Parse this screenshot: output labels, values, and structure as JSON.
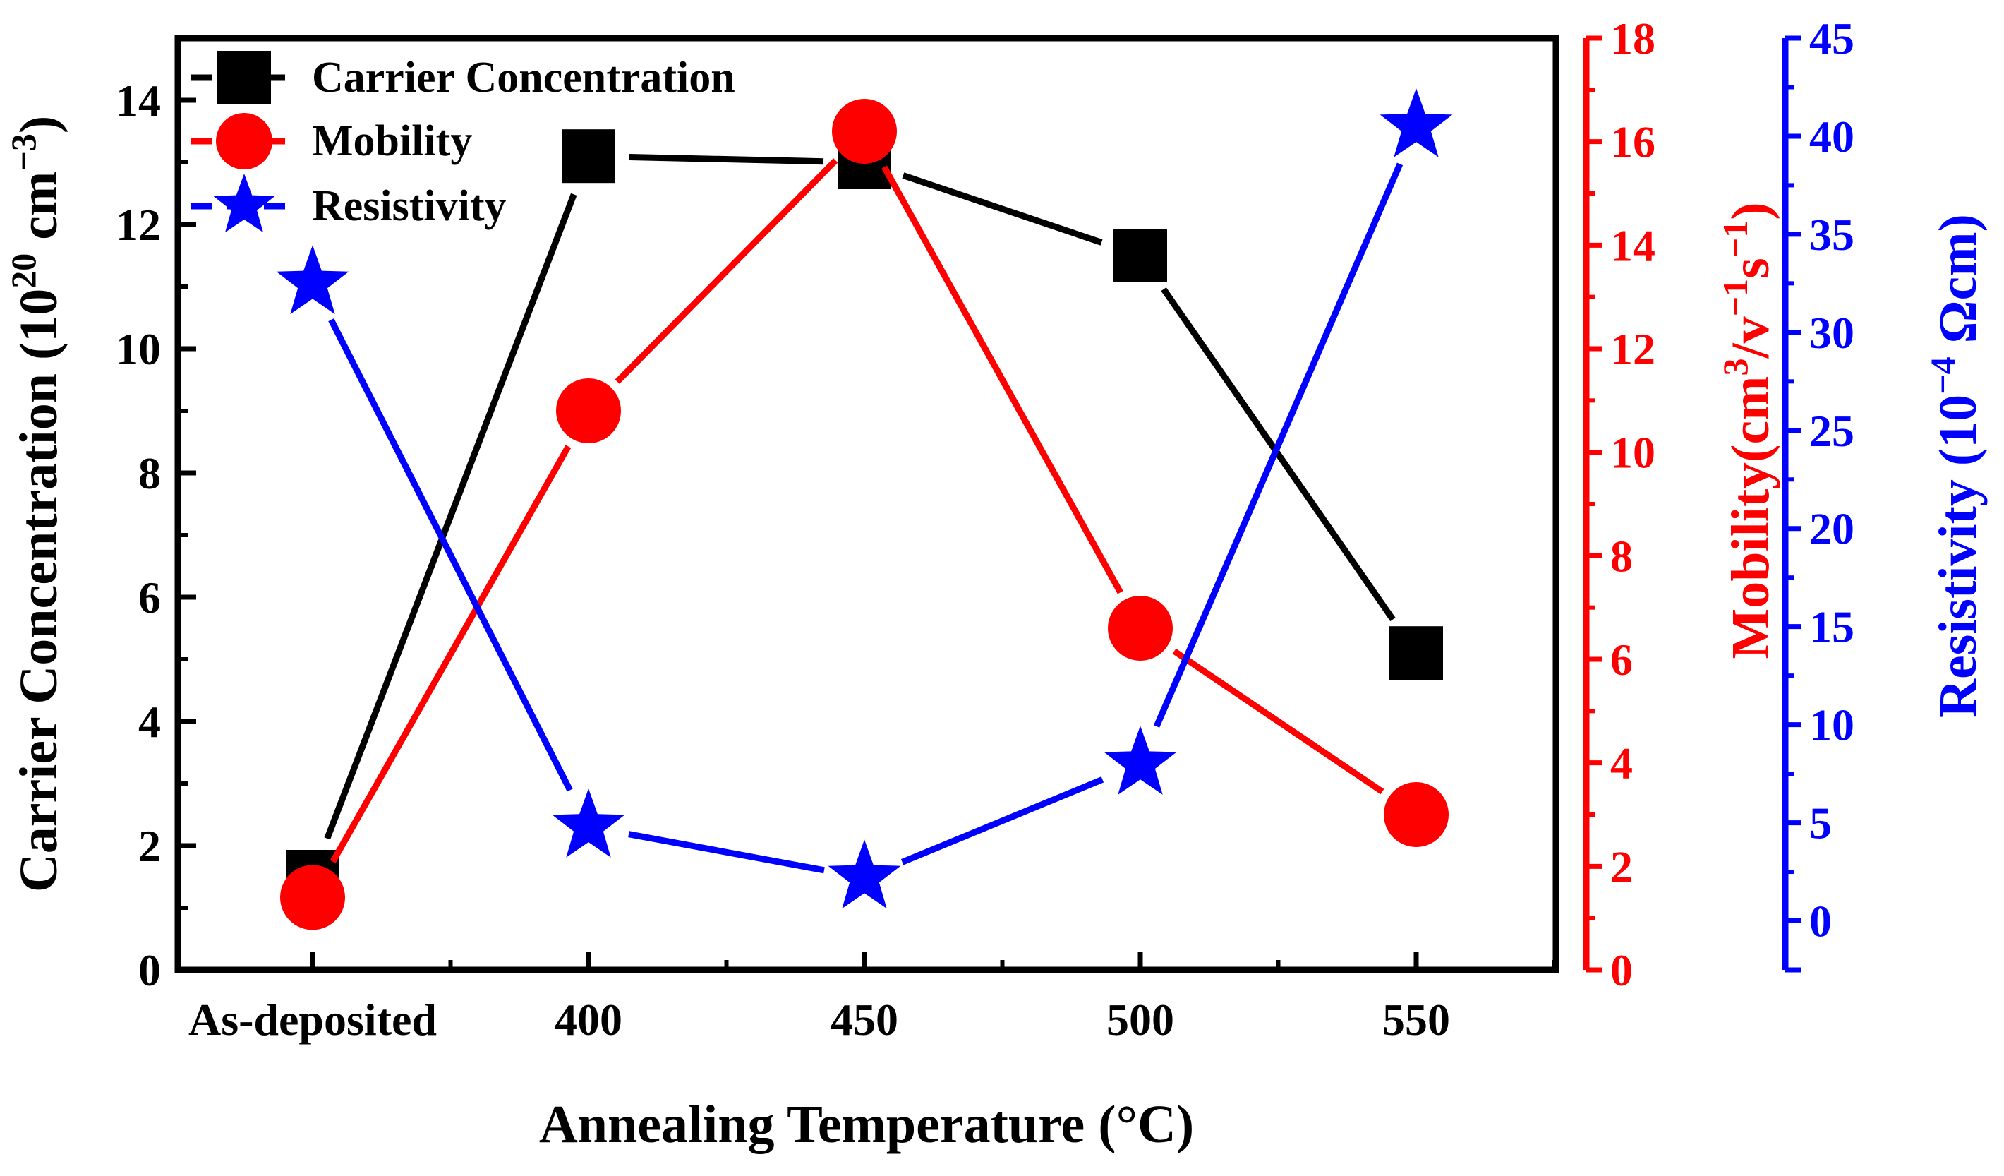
{
  "chart_data": {
    "type": "line",
    "xlabel": "Annealing Temperature (°C)",
    "categories": [
      "As-deposited",
      "400",
      "450",
      "500",
      "550"
    ],
    "axes": {
      "left": {
        "label_main": "Carrier Concentration (10",
        "label_exp": "20",
        "label_mid": " cm",
        "label_exp2": "−3",
        "label_end": ")",
        "color": "#000000",
        "ylim": [
          0,
          15
        ],
        "ticks": [
          0,
          2,
          4,
          6,
          8,
          10,
          12,
          14
        ]
      },
      "right1": {
        "label_main": "Mobility(cm",
        "label_exp": "3",
        "label_mid": "/v",
        "label_exp2": "−1",
        "label_mid2": "s",
        "label_exp3": "−1",
        "label_end": ")",
        "color": "#ff0000",
        "ylim": [
          0,
          18
        ],
        "ticks": [
          0,
          2,
          4,
          6,
          8,
          10,
          12,
          14,
          16,
          18
        ]
      },
      "right2": {
        "label_main": "Resistivity (10",
        "label_exp": "−4",
        "label_end": " Ωcm)",
        "color": "#0000ff",
        "ylim": [
          -2.5,
          45
        ],
        "ticks": [
          0,
          5,
          10,
          15,
          20,
          25,
          30,
          35,
          40,
          45
        ]
      }
    },
    "series": [
      {
        "name": "Carrier Concentration",
        "axis": "left",
        "color": "#000000",
        "marker": "square",
        "values": [
          1.5,
          13.1,
          13.0,
          11.5,
          5.1
        ]
      },
      {
        "name": "Mobility",
        "axis": "right1",
        "color": "#ff0000",
        "marker": "circle",
        "values": [
          1.4,
          10.8,
          16.2,
          6.6,
          3.0
        ]
      },
      {
        "name": "Resistivity",
        "axis": "right2",
        "color": "#0000ff",
        "marker": "star",
        "values": [
          32.5,
          4.8,
          2.2,
          8.0,
          40.5
        ]
      }
    ],
    "legend_position": "top-left",
    "grid": false
  }
}
